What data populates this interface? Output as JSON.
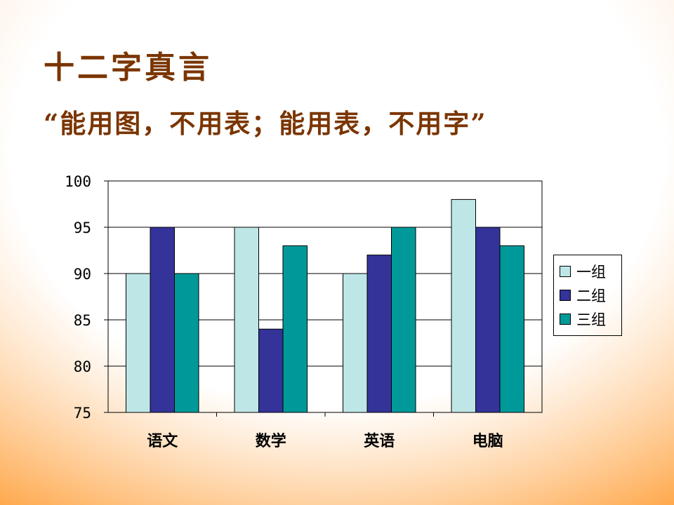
{
  "slide": {
    "title": "十二字真言",
    "subtitle": "“能用图，不用表；能用表，不用字”"
  },
  "colors": {
    "title": "#7a3500",
    "series": [
      "#bfe6e6",
      "#333399",
      "#009999"
    ]
  },
  "chart_data": {
    "type": "bar",
    "categories": [
      "语文",
      "数学",
      "英语",
      "电脑"
    ],
    "series": [
      {
        "name": "一组",
        "values": [
          90,
          95,
          90,
          98
        ]
      },
      {
        "name": "二组",
        "values": [
          95,
          84,
          92,
          95
        ]
      },
      {
        "name": "三组",
        "values": [
          90,
          93,
          95,
          93
        ]
      }
    ],
    "ylim": [
      75,
      100
    ],
    "yticks": [
      75,
      80,
      85,
      90,
      95,
      100
    ],
    "grid": true,
    "legend": "right"
  }
}
